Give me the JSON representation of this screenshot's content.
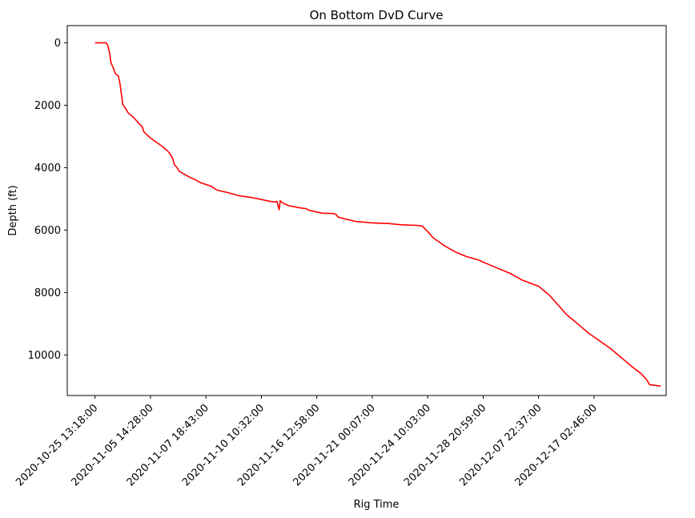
{
  "chart_data": {
    "type": "line",
    "title": "On Bottom DvD Curve",
    "xlabel": "Rig Time",
    "ylabel": "Depth (ft)",
    "y_inverted": true,
    "ylim": [
      11300,
      -550
    ],
    "xlim": [
      -0.5,
      10.3
    ],
    "grid": false,
    "legend": "none",
    "x_ticks": [
      {
        "pos": 0,
        "label": "2020-10-25 13:18:00"
      },
      {
        "pos": 1,
        "label": "2020-11-05 14:28:00"
      },
      {
        "pos": 2,
        "label": "2020-11-07 18:43:00"
      },
      {
        "pos": 3,
        "label": "2020-11-10 10:32:00"
      },
      {
        "pos": 4,
        "label": "2020-11-16 12:58:00"
      },
      {
        "pos": 5,
        "label": "2020-11-21 00:07:00"
      },
      {
        "pos": 6,
        "label": "2020-11-24 10:03:00"
      },
      {
        "pos": 7,
        "label": "2020-11-28 20:59:00"
      },
      {
        "pos": 8,
        "label": "2020-12-07 22:37:00"
      },
      {
        "pos": 9,
        "label": "2020-12-17 02:46:00"
      }
    ],
    "y_ticks": [
      0,
      2000,
      4000,
      6000,
      8000,
      10000
    ],
    "series": [
      {
        "color": "#ff0000",
        "points": [
          [
            0.0,
            0
          ],
          [
            0.2,
            0
          ],
          [
            0.23,
            80
          ],
          [
            0.26,
            300
          ],
          [
            0.29,
            650
          ],
          [
            0.33,
            800
          ],
          [
            0.37,
            1000
          ],
          [
            0.42,
            1050
          ],
          [
            0.45,
            1300
          ],
          [
            0.48,
            1700
          ],
          [
            0.5,
            1980
          ],
          [
            0.55,
            2100
          ],
          [
            0.6,
            2250
          ],
          [
            0.7,
            2400
          ],
          [
            0.8,
            2600
          ],
          [
            0.85,
            2680
          ],
          [
            0.88,
            2850
          ],
          [
            1.0,
            3050
          ],
          [
            1.2,
            3300
          ],
          [
            1.3,
            3450
          ],
          [
            1.35,
            3550
          ],
          [
            1.4,
            3700
          ],
          [
            1.43,
            3900
          ],
          [
            1.48,
            4000
          ],
          [
            1.52,
            4120
          ],
          [
            1.6,
            4200
          ],
          [
            1.7,
            4300
          ],
          [
            1.8,
            4380
          ],
          [
            1.9,
            4480
          ],
          [
            2.0,
            4540
          ],
          [
            2.1,
            4600
          ],
          [
            2.2,
            4720
          ],
          [
            2.4,
            4800
          ],
          [
            2.6,
            4900
          ],
          [
            2.8,
            4950
          ],
          [
            3.0,
            5020
          ],
          [
            3.1,
            5060
          ],
          [
            3.2,
            5090
          ],
          [
            3.25,
            5100
          ],
          [
            3.28,
            5080
          ],
          [
            3.32,
            5350
          ],
          [
            3.34,
            5060
          ],
          [
            3.4,
            5150
          ],
          [
            3.5,
            5220
          ],
          [
            3.7,
            5290
          ],
          [
            3.8,
            5310
          ],
          [
            3.85,
            5360
          ],
          [
            4.0,
            5420
          ],
          [
            4.1,
            5460
          ],
          [
            4.3,
            5470
          ],
          [
            4.35,
            5500
          ],
          [
            4.38,
            5580
          ],
          [
            4.5,
            5640
          ],
          [
            4.7,
            5720
          ],
          [
            5.0,
            5770
          ],
          [
            5.3,
            5790
          ],
          [
            5.5,
            5830
          ],
          [
            5.8,
            5850
          ],
          [
            5.9,
            5870
          ],
          [
            6.0,
            6050
          ],
          [
            6.1,
            6250
          ],
          [
            6.3,
            6500
          ],
          [
            6.5,
            6700
          ],
          [
            6.7,
            6850
          ],
          [
            6.9,
            6950
          ],
          [
            7.1,
            7100
          ],
          [
            7.5,
            7400
          ],
          [
            7.7,
            7600
          ],
          [
            8.0,
            7800
          ],
          [
            8.2,
            8100
          ],
          [
            8.3,
            8300
          ],
          [
            8.5,
            8700
          ],
          [
            8.7,
            9000
          ],
          [
            8.9,
            9300
          ],
          [
            9.3,
            9800
          ],
          [
            9.5,
            10100
          ],
          [
            9.7,
            10400
          ],
          [
            9.85,
            10600
          ],
          [
            9.95,
            10800
          ],
          [
            10.0,
            10950
          ],
          [
            10.2,
            11000
          ]
        ]
      }
    ]
  }
}
